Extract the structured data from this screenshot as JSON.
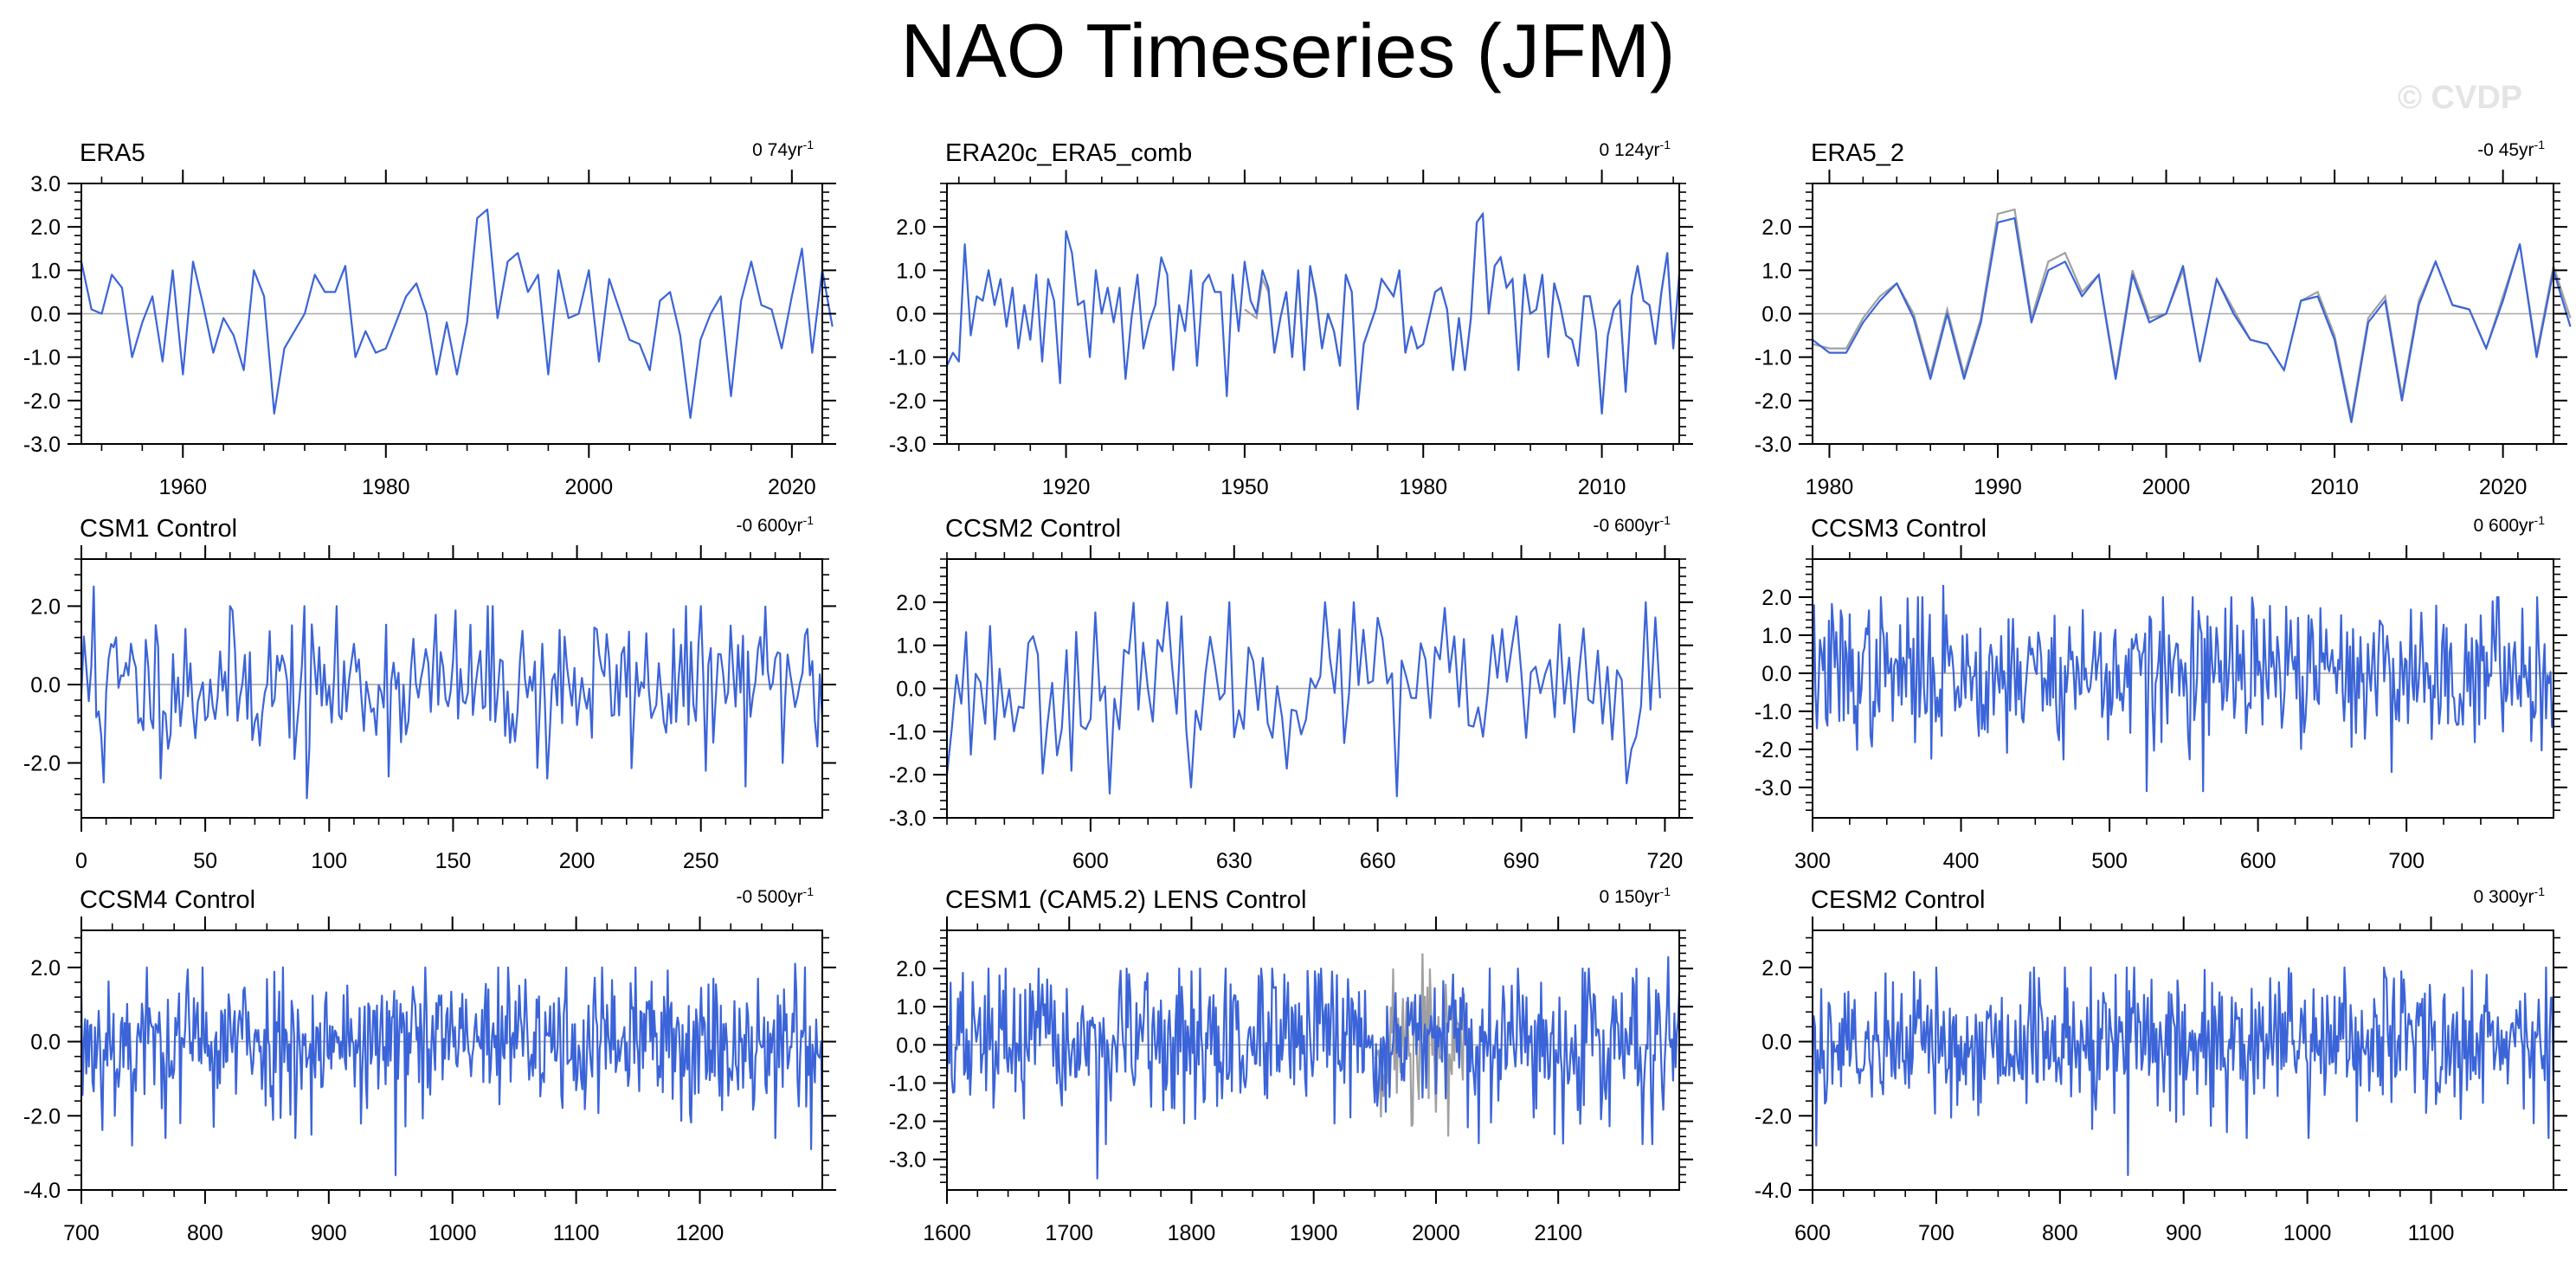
{
  "title": "NAO Timeseries (JFM)",
  "watermark": "© CVDP",
  "colors": {
    "series": "#3b64d8",
    "obs_overlay": "#a0a0a0",
    "frame": "#000000",
    "zero_line": "#a8a8a8"
  },
  "chart_data": [
    {
      "type": "line",
      "title": "ERA5",
      "trend": "0 74yr",
      "x_range": [
        1950,
        2023
      ],
      "xticks": [
        1960,
        1980,
        2000,
        2020
      ],
      "ylim": [
        -3.0,
        3.0
      ],
      "yticks": [
        -3.0,
        -2.0,
        -1.0,
        0.0,
        1.0,
        2.0,
        3.0
      ],
      "ytick_labels": [
        "-3.0",
        "-2.0",
        "-1.0",
        "0.0",
        "1.0",
        "2.0",
        "3.0"
      ],
      "grid": false,
      "series": [
        {
          "x_start": 1950,
          "values": [
            1.2,
            0.1,
            0.0,
            0.9,
            0.6,
            -1.0,
            -0.2,
            0.4,
            -1.1,
            1.0,
            -1.4,
            1.2,
            0.2,
            -0.9,
            -0.1,
            -0.5,
            -1.3,
            1.0,
            0.4,
            -2.3,
            -0.8,
            -0.4,
            0.0,
            0.9,
            0.5,
            0.5,
            1.1,
            -1.0,
            -0.4,
            -0.9,
            -0.8,
            -0.2,
            0.4,
            0.7,
            0.0,
            -1.4,
            -0.2,
            -1.4,
            -0.2,
            2.2,
            2.4,
            -0.1,
            1.2,
            1.4,
            0.5,
            0.9,
            -1.4,
            1.0,
            -0.1,
            0.0,
            1.0,
            -1.1,
            0.8,
            0.1,
            -0.6,
            -0.7,
            -1.3,
            0.3,
            0.5,
            -0.5,
            -2.4,
            -0.6,
            0.0,
            0.4,
            -1.9,
            0.3,
            1.2,
            0.2,
            0.1,
            -0.8,
            0.4,
            1.5,
            -0.9,
            1.0,
            -0.3
          ]
        }
      ]
    },
    {
      "type": "line",
      "title": "ERA20c_ERA5_comb",
      "trend": "0 124yr",
      "x_range": [
        1900,
        2023
      ],
      "xticks": [
        1920,
        1950,
        1980,
        2010
      ],
      "ylim": [
        -3.0,
        3.0
      ],
      "yticks": [
        -3.0,
        -2.0,
        -1.0,
        0.0,
        1.0,
        2.0
      ],
      "ytick_labels": [
        "-3.0",
        "-2.0",
        "-1.0",
        "0.0",
        "1.0",
        "2.0"
      ],
      "grid": false,
      "overlay": {
        "x_start": 1950,
        "values": [
          0.1,
          0.0,
          -0.1,
          0.8,
          0.5,
          -0.9,
          -0.1,
          0.5,
          -1.0,
          0.9,
          -1.3,
          1.1,
          0.3,
          -0.8,
          0.0,
          -0.4,
          -1.2,
          0.9,
          0.5,
          -2.2,
          -0.7,
          -0.3,
          0.1,
          0.8,
          0.6,
          0.4,
          1.0,
          -0.9,
          -0.3,
          -0.8,
          -0.7,
          -0.1,
          0.5,
          0.6,
          0.1,
          -1.3,
          -0.1,
          -1.3,
          -0.1,
          2.1,
          2.3,
          0.0,
          1.1,
          1.3,
          0.6,
          0.8,
          -1.3,
          0.9,
          0.0,
          0.1,
          0.9,
          -1.0,
          0.7,
          0.2,
          -0.5,
          -0.6,
          -1.2,
          0.4,
          0.4,
          -0.4,
          -2.3,
          -0.5,
          0.1,
          0.3,
          -1.8,
          0.4,
          1.1,
          0.3,
          0.2,
          -0.7,
          0.5,
          1.4,
          -0.8,
          0.9
        ]
      },
      "series": [
        {
          "x_start": 1900,
          "values": [
            -1.2,
            -0.9,
            -1.1,
            1.6,
            -0.5,
            0.4,
            0.3,
            1.0,
            0.2,
            0.8,
            -0.3,
            0.6,
            -0.8,
            0.2,
            -0.6,
            0.9,
            -1.1,
            0.8,
            0.3,
            -1.6,
            1.9,
            1.4,
            0.2,
            0.3,
            -1.0,
            1.0,
            0.0,
            0.6,
            -0.2,
            0.6,
            -1.5,
            -0.1,
            0.9,
            -0.8,
            -0.2,
            0.2,
            1.3,
            0.9,
            -1.3,
            0.2,
            -0.4,
            1.0,
            -1.2,
            0.7,
            0.9,
            0.5,
            0.5,
            -1.9,
            0.9,
            -0.4,
            1.2,
            0.3,
            0.0,
            1.0,
            0.6,
            -0.9,
            -0.1,
            0.5,
            -1.0,
            1.0,
            -1.3,
            1.1,
            0.4,
            -0.8,
            0.0,
            -0.4,
            -1.2,
            0.9,
            0.5,
            -2.2,
            -0.7,
            -0.3,
            0.1,
            0.8,
            0.6,
            0.4,
            1.0,
            -0.9,
            -0.3,
            -0.8,
            -0.7,
            -0.1,
            0.5,
            0.6,
            0.1,
            -1.3,
            -0.1,
            -1.3,
            -0.1,
            2.1,
            2.3,
            0.0,
            1.1,
            1.3,
            0.6,
            0.8,
            -1.3,
            0.9,
            0.0,
            0.1,
            0.9,
            -1.0,
            0.7,
            0.2,
            -0.5,
            -0.6,
            -1.2,
            0.4,
            0.4,
            -0.4,
            -2.3,
            -0.5,
            0.1,
            0.3,
            -1.8,
            0.4,
            1.1,
            0.3,
            0.2,
            -0.7,
            0.5,
            1.4,
            -0.8,
            0.9
          ]
        }
      ]
    },
    {
      "type": "line",
      "title": "ERA5_2",
      "trend": "-0 45yr",
      "x_range": [
        1979,
        2023
      ],
      "xticks": [
        1980,
        1990,
        2000,
        2010,
        2020
      ],
      "ylim": [
        -3.0,
        3.0
      ],
      "yticks": [
        -3.0,
        -2.0,
        -1.0,
        0.0,
        1.0,
        2.0
      ],
      "ytick_labels": [
        "-3.0",
        "-2.0",
        "-1.0",
        "0.0",
        "1.0",
        "2.0"
      ],
      "grid": false,
      "overlay": {
        "x_start": 1979,
        "values": [
          -0.7,
          -0.8,
          -0.8,
          -0.1,
          0.4,
          0.7,
          0.0,
          -1.4,
          0.1,
          -1.4,
          -0.1,
          2.3,
          2.4,
          -0.1,
          1.2,
          1.4,
          0.5,
          0.9,
          -1.4,
          1.0,
          -0.1,
          0.0,
          1.0,
          -1.1,
          0.8,
          0.1,
          -0.6,
          -0.7,
          -1.3,
          0.3,
          0.5,
          -0.5,
          -2.4,
          -0.1,
          0.4,
          -1.9,
          0.3,
          1.2,
          0.2,
          0.1,
          -0.8,
          0.4,
          1.6,
          -0.9,
          1.1,
          -0.1
        ]
      },
      "series": [
        {
          "x_start": 1979,
          "values": [
            -0.6,
            -0.9,
            -0.9,
            -0.2,
            0.3,
            0.7,
            -0.1,
            -1.5,
            0.0,
            -1.5,
            -0.2,
            2.1,
            2.2,
            -0.2,
            1.0,
            1.2,
            0.4,
            0.9,
            -1.5,
            0.9,
            -0.2,
            0.0,
            1.1,
            -1.1,
            0.8,
            0.0,
            -0.6,
            -0.7,
            -1.3,
            0.3,
            0.4,
            -0.6,
            -2.5,
            -0.2,
            0.3,
            -2.0,
            0.2,
            1.2,
            0.2,
            0.1,
            -0.8,
            0.3,
            1.6,
            -1.0,
            1.0,
            -0.3
          ]
        }
      ]
    },
    {
      "type": "line",
      "title": "CSM1 Control",
      "trend": "-0 600yr",
      "x_range": [
        0,
        299
      ],
      "xticks": [
        0,
        50,
        100,
        150,
        200,
        250
      ],
      "ylim": [
        -3.4,
        3.2
      ],
      "yticks": [
        -2.0,
        0.0,
        2.0
      ],
      "ytick_labels": [
        "-2.0",
        "0.0",
        "2.0"
      ],
      "grid": false,
      "series": [
        {
          "x_start": 0,
          "synthetic": {
            "n": 300,
            "amp": 0.95,
            "seed": 11,
            "peaks": [
              [
                5,
                2.5
              ],
              [
                9,
                -2.5
              ],
              [
                91,
                -2.9
              ],
              [
                188,
                -2.4
              ]
            ]
          }
        }
      ]
    },
    {
      "type": "line",
      "title": "CCSM2 Control",
      "trend": "-0 600yr",
      "x_range": [
        570,
        723
      ],
      "xticks": [
        600,
        630,
        660,
        690,
        720
      ],
      "ylim": [
        -3.0,
        3.0
      ],
      "yticks": [
        -3.0,
        -2.0,
        -1.0,
        0.0,
        1.0,
        2.0
      ],
      "ytick_labels": [
        "-3.0",
        "-2.0",
        "-1.0",
        "0.0",
        "1.0",
        "2.0"
      ],
      "grid": false,
      "series": [
        {
          "x_start": 570,
          "synthetic": {
            "n": 150,
            "amp": 0.9,
            "seed": 23,
            "peaks": [
              [
                570,
                -2.0
              ],
              [
                655,
                2.0
              ],
              [
                664,
                -2.5
              ],
              [
                712,
                -2.2
              ]
            ]
          }
        }
      ]
    },
    {
      "type": "line",
      "title": "CCSM3 Control",
      "trend": "0 600yr",
      "x_range": [
        300,
        799
      ],
      "xticks": [
        300,
        400,
        500,
        600,
        700
      ],
      "ylim": [
        -3.8,
        3.0
      ],
      "yticks": [
        -3.0,
        -2.0,
        -1.0,
        0.0,
        1.0,
        2.0
      ],
      "ytick_labels": [
        "-3.0",
        "-2.0",
        "-1.0",
        "0.0",
        "1.0",
        "2.0"
      ],
      "grid": false,
      "series": [
        {
          "x_start": 300,
          "synthetic": {
            "n": 500,
            "amp": 0.95,
            "seed": 37,
            "peaks": [
              [
                388,
                2.3
              ],
              [
                525,
                -3.1
              ],
              [
                563,
                -3.1
              ],
              [
                778,
                1.7
              ]
            ]
          }
        }
      ]
    },
    {
      "type": "line",
      "title": "CCSM4 Control",
      "trend": "-0 500yr",
      "x_range": [
        700,
        1299
      ],
      "xticks": [
        700,
        800,
        900,
        1000,
        1100,
        1200
      ],
      "ylim": [
        -4.0,
        3.0
      ],
      "yticks": [
        -4.0,
        -2.0,
        0.0,
        2.0
      ],
      "ytick_labels": [
        "-4.0",
        "-2.0",
        "0.0",
        "2.0"
      ],
      "grid": false,
      "series": [
        {
          "x_start": 700,
          "synthetic": {
            "n": 600,
            "amp": 1.0,
            "seed": 53,
            "peaks": [
              [
                954,
                -3.6
              ],
              [
                741,
                -2.8
              ],
              [
                1290,
                -2.9
              ],
              [
                1277,
                2.1
              ]
            ]
          }
        }
      ]
    },
    {
      "type": "line",
      "title": "CESM1 (CAM5.2) LENS Control",
      "trend": "0 150yr",
      "x_range": [
        1600,
        2199
      ],
      "xticks": [
        1600,
        1700,
        1800,
        1900,
        2000,
        2100
      ],
      "ylim": [
        -3.8,
        3.0
      ],
      "yticks": [
        -3.0,
        -2.0,
        -1.0,
        0.0,
        1.0,
        2.0
      ],
      "ytick_labels": [
        "-3.0",
        "-2.0",
        "-1.0",
        "0.0",
        "1.0",
        "2.0"
      ],
      "grid": false,
      "overlay": {
        "x_start": 1950,
        "synthetic": {
          "n": 74,
          "amp": 1.0,
          "seed": 71,
          "peaks": [
            [
              1989,
              2.4
            ],
            [
              2010,
              -2.4
            ]
          ]
        }
      },
      "series": [
        {
          "x_start": 1600,
          "synthetic": {
            "n": 600,
            "amp": 0.95,
            "seed": 67,
            "peaks": [
              [
                1723,
                -3.5
              ],
              [
                1648,
                2.0
              ],
              [
                2190,
                2.3
              ]
            ]
          }
        }
      ]
    },
    {
      "type": "line",
      "title": "CESM2 Control",
      "trend": "0 300yr",
      "x_range": [
        600,
        1199
      ],
      "xticks": [
        600,
        700,
        800,
        900,
        1000,
        1100
      ],
      "ylim": [
        -4.0,
        3.0
      ],
      "yticks": [
        -4.0,
        -2.0,
        0.0,
        2.0
      ],
      "ytick_labels": [
        "-4.0",
        "-2.0",
        "0.0",
        "2.0"
      ],
      "grid": false,
      "series": [
        {
          "x_start": 600,
          "synthetic": {
            "n": 600,
            "amp": 0.95,
            "seed": 89,
            "peaks": [
              [
                855,
                -3.6
              ],
              [
                603,
                -2.8
              ],
              [
                860,
                2.0
              ],
              [
                1145,
                1.8
              ]
            ]
          }
        }
      ]
    }
  ]
}
